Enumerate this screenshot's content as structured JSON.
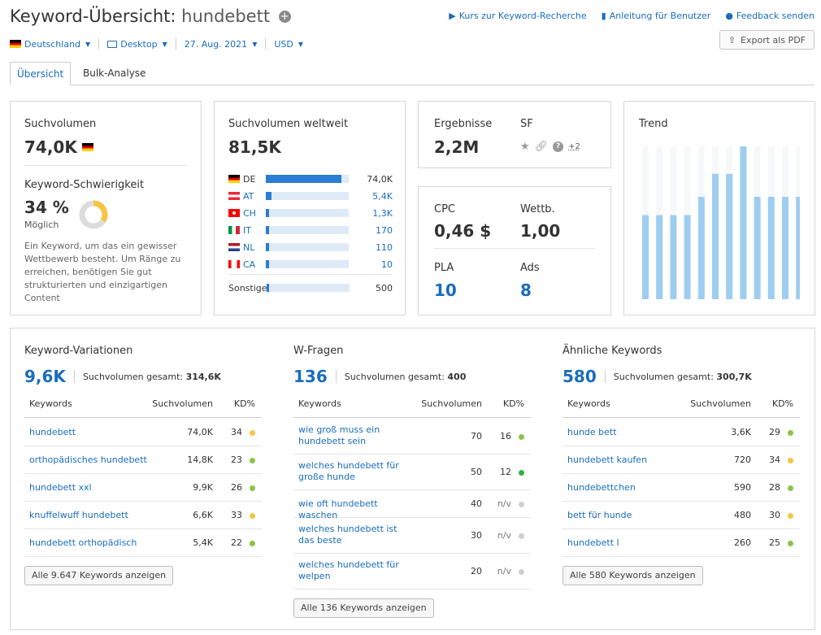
{
  "header": {
    "title_prefix": "Keyword-Übersicht:",
    "keyword": "hundebett",
    "links": [
      "Kurs zur Keyword-Recherche",
      "Anleitung für Benutzer",
      "Feedback senden"
    ],
    "export_label": "Export als PDF"
  },
  "filters": {
    "country": "Deutschland",
    "device": "Desktop",
    "date": "27. Aug. 2021",
    "currency": "USD"
  },
  "tabs": [
    "Übersicht",
    "Bulk-Analyse"
  ],
  "volume": {
    "label": "Suchvolumen",
    "value": "74,0K",
    "kd_label": "Keyword-Schwierigkeit",
    "kd_value": "34 %",
    "kd_percent": 34,
    "kd_sub": "Möglich",
    "description": "Ein Keyword, um das ein gewisser Wettbewerb besteht. Um Ränge zu erreichen, benötigen Sie gut strukturierten und einzigartigen Content"
  },
  "global": {
    "label": "Suchvolumen weltweit",
    "value": "81,5K",
    "countries": [
      {
        "code": "DE",
        "value": "74,0K",
        "share": 0.91,
        "link": false
      },
      {
        "code": "AT",
        "value": "5,4K",
        "share": 0.065,
        "link": true
      },
      {
        "code": "CH",
        "value": "1,3K",
        "share": 0.02,
        "link": true
      },
      {
        "code": "IT",
        "value": "170",
        "share": 0.01,
        "link": true
      },
      {
        "code": "NL",
        "value": "110",
        "share": 0.01,
        "link": true
      },
      {
        "code": "CA",
        "value": "10",
        "share": 0.005,
        "link": true
      }
    ],
    "other_label": "Sonstige",
    "other_value": "500",
    "other_share": 0.01
  },
  "results": {
    "label": "Ergebnisse",
    "value": "2,2M",
    "sf_label": "SF",
    "sf_extra": "+2"
  },
  "metrics": {
    "cpc_label": "CPC",
    "cpc_value": "0,46 $",
    "comp_label": "Wettb.",
    "comp_value": "1,00",
    "pla_label": "PLA",
    "pla_value": "10",
    "ads_label": "Ads",
    "ads_value": "8"
  },
  "trend": {
    "label": "Trend",
    "values": [
      0.55,
      0.55,
      0.55,
      0.55,
      0.67,
      0.82,
      0.82,
      1.0,
      0.67,
      0.67,
      0.67,
      0.67
    ]
  },
  "columns": [
    {
      "title": "Keyword-Variationen",
      "count": "9,6K",
      "total_label": "Suchvolumen gesamt:",
      "total_value": "314,6K",
      "headers": [
        "Keywords",
        "Suchvolumen",
        "KD%"
      ],
      "rows": [
        {
          "kw": "hundebett",
          "sv": "74,0K",
          "kd": "34",
          "dot": "#f7c544"
        },
        {
          "kw": "orthopädisches hundebett",
          "sv": "14,8K",
          "kd": "23",
          "dot": "#8bc34a"
        },
        {
          "kw": "hundebett xxl",
          "sv": "9,9K",
          "kd": "26",
          "dot": "#8bc34a"
        },
        {
          "kw": "knuffelwuff hundebett",
          "sv": "6,6K",
          "kd": "33",
          "dot": "#f7c544"
        },
        {
          "kw": "hundebett orthopädisch",
          "sv": "5,4K",
          "kd": "22",
          "dot": "#8bc34a"
        }
      ],
      "button": "Alle 9.647 Keywords anzeigen"
    },
    {
      "title": "W-Fragen",
      "count": "136",
      "total_label": "Suchvolumen gesamt:",
      "total_value": "400",
      "headers": [
        "Keywords",
        "Suchvolumen",
        "KD%"
      ],
      "rows": [
        {
          "kw": "wie groß muss ein hundebett sein",
          "sv": "70",
          "kd": "16",
          "dot": "#8bc34a"
        },
        {
          "kw": "welches hundebett für große hunde",
          "sv": "50",
          "kd": "12",
          "dot": "#2fb344"
        },
        {
          "kw": "wie oft hundebett waschen",
          "sv": "40",
          "kd": "n/v",
          "dot": "#cfcfcf"
        },
        {
          "kw": "welches hundebett ist das beste",
          "sv": "30",
          "kd": "n/v",
          "dot": "#cfcfcf"
        },
        {
          "kw": "welches hundebett für welpen",
          "sv": "20",
          "kd": "n/v",
          "dot": "#cfcfcf"
        }
      ],
      "button": "Alle 136 Keywords anzeigen"
    },
    {
      "title": "Ähnliche Keywords",
      "count": "580",
      "total_label": "Suchvolumen gesamt:",
      "total_value": "300,7K",
      "headers": [
        "Keywords",
        "Suchvolumen",
        "KD%"
      ],
      "rows": [
        {
          "kw": "hunde bett",
          "sv": "3,6K",
          "kd": "29",
          "dot": "#8bc34a"
        },
        {
          "kw": "hundebett kaufen",
          "sv": "720",
          "kd": "34",
          "dot": "#f7c544"
        },
        {
          "kw": "hundebettchen",
          "sv": "590",
          "kd": "28",
          "dot": "#8bc34a"
        },
        {
          "kw": "bett für hunde",
          "sv": "480",
          "kd": "30",
          "dot": "#f7c544"
        },
        {
          "kw": "hundebett l",
          "sv": "260",
          "kd": "25",
          "dot": "#8bc34a"
        }
      ],
      "button": "Alle 580 Keywords anzeigen"
    }
  ],
  "colors": {
    "link": "#1a6dbd",
    "bar": "#2b7cd3",
    "trend_bar": "#9fcdf0",
    "kd_ring": "#f7c544",
    "kd_track": "#dcdcdc"
  }
}
